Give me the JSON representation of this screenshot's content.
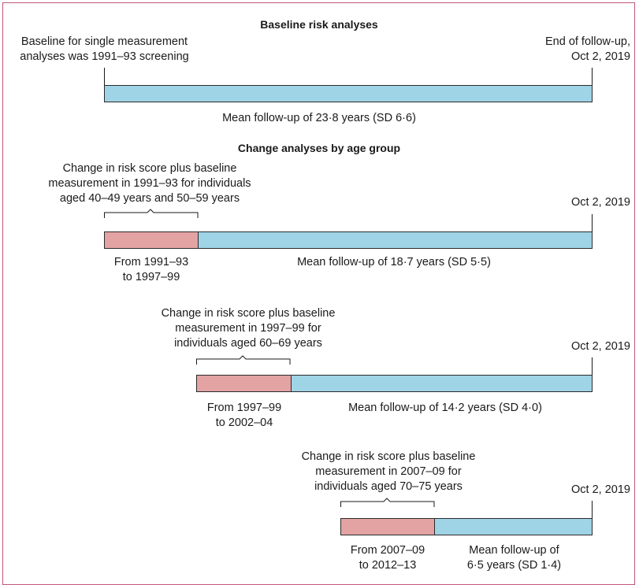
{
  "section1": {
    "title": "Baseline risk analyses",
    "baseline_note": [
      "Baseline for single measurement",
      "analyses was 1991–93 screening"
    ],
    "end_note": [
      "End of follow-up,",
      "Oct 2, 2019"
    ],
    "followup": "Mean follow-up of 23·8 years (SD 6·6)"
  },
  "section2": {
    "title": "Change analyses by age group",
    "groups": [
      {
        "note": [
          "Change in risk score plus baseline",
          "measurement in 1991–93 for individuals",
          "aged 40–49 years and 50–59 years"
        ],
        "end_date": "Oct 2, 2019",
        "change_period": [
          "From 1991–93",
          "to 1997–99"
        ],
        "followup": [
          "Mean follow-up of 18·7 years (SD 5·5)"
        ]
      },
      {
        "note": [
          "Change in risk score plus baseline",
          "measurement in 1997–99 for",
          "individuals aged 60–69 years"
        ],
        "end_date": "Oct 2, 2019",
        "change_period": [
          "From 1997–99",
          "to 2002–04"
        ],
        "followup": [
          "Mean follow-up of 14·2 years (SD 4·0)"
        ]
      },
      {
        "note": [
          "Change in risk score plus baseline",
          "measurement in 2007–09 for",
          "individuals aged 70–75 years"
        ],
        "end_date": "Oct 2, 2019",
        "change_period": [
          "From 2007–09",
          "to 2012–13"
        ],
        "followup": [
          "Mean follow-up of",
          "6·5 years (SD 1·4)"
        ]
      }
    ]
  },
  "colors": {
    "followup_bar": "#9fd3e6",
    "change_bar": "#e3a3a3",
    "frame": "#c0587a"
  }
}
